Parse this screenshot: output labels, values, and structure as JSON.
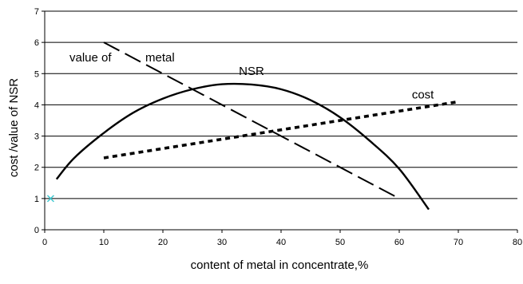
{
  "chart_data": {
    "type": "line",
    "xlabel": "content of metal in concentrate,%",
    "ylabel": "cost /value of NSR",
    "xlim": [
      0,
      80
    ],
    "ylim": [
      0,
      7
    ],
    "xticks": [
      "0",
      "10",
      "20",
      "30",
      "40",
      "50",
      "60",
      "70",
      "80"
    ],
    "yticks": [
      "0",
      "1",
      "2",
      "3",
      "4",
      "5",
      "6",
      "7"
    ],
    "grid": "horizontal",
    "series": [
      {
        "name": "NSR",
        "style": "solid",
        "label_at": [
          35,
          4.95
        ],
        "points": [
          [
            2,
            1.62
          ],
          [
            5,
            2.3
          ],
          [
            10,
            3.1
          ],
          [
            15,
            3.75
          ],
          [
            20,
            4.2
          ],
          [
            25,
            4.5
          ],
          [
            30,
            4.66
          ],
          [
            35,
            4.65
          ],
          [
            40,
            4.5
          ],
          [
            45,
            4.15
          ],
          [
            50,
            3.6
          ],
          [
            55,
            2.85
          ],
          [
            60,
            1.95
          ],
          [
            65,
            0.65
          ]
        ]
      },
      {
        "name": "cost",
        "style": "dotted",
        "label_at": [
          64,
          4.2
        ],
        "points": [
          [
            10,
            2.3
          ],
          [
            70,
            4.1
          ]
        ]
      },
      {
        "name": "value of metal",
        "style": "dashed",
        "label_parts": [
          "value of",
          "metal"
        ],
        "points": [
          [
            10,
            6.0
          ],
          [
            60,
            1.0
          ]
        ]
      }
    ],
    "markers": [
      {
        "shape": "x",
        "x": 1,
        "y": 1,
        "color": "#3fc7cf"
      }
    ],
    "colors": {
      "line": "#000000",
      "grid": "#000000",
      "marker": "#3fc7cf"
    }
  }
}
